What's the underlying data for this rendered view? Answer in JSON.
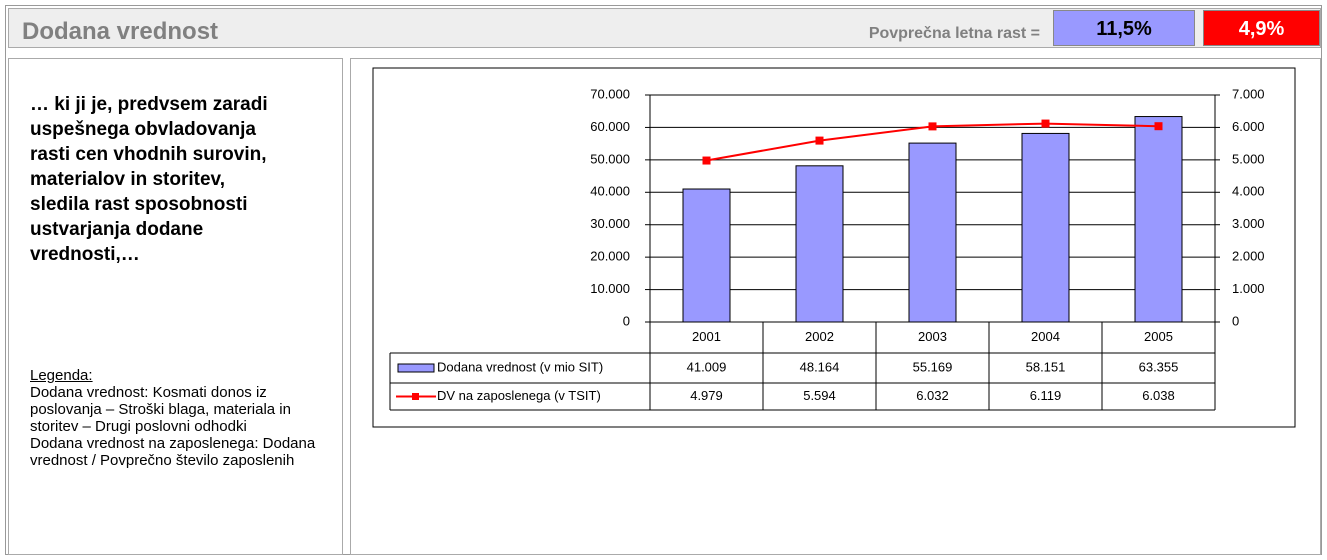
{
  "header": {
    "title": "Dodana vrednost",
    "growth_label": "Povprečna letna rast =",
    "growth_values": [
      "11,5%",
      "4,9%"
    ]
  },
  "left": {
    "text": "… ki ji je, predvsem zaradi uspešnega obvladovanja rasti cen vhodnih surovin, materialov in storitev, sledila rast sposobnosti ustvarjanja dodane vrednosti,…",
    "legend_title": "Legenda:",
    "legend_items": [
      "Dodana vrednost: Kosmati donos iz poslovanja – Stroški blaga, materiala in storitev – Drugi poslovni odhodki",
      "Dodana vrednost na zaposlenega: Dodana vrednost / Povprečno število zaposlenih"
    ]
  },
  "chart_data": {
    "type": "bar_line",
    "categories": [
      "2001",
      "2002",
      "2003",
      "2004",
      "2005"
    ],
    "series": [
      {
        "name": "Dodana vrednost (v mio SIT)",
        "type": "bar",
        "color": "#9999ff",
        "values": [
          41009,
          48164,
          55169,
          58151,
          63355
        ],
        "value_labels": [
          "41.009",
          "48.164",
          "55.169",
          "58.151",
          "63.355"
        ]
      },
      {
        "name": "DV na zaposlenega (v TSIT)",
        "type": "line",
        "axis": "y2",
        "color": "#ff0000",
        "values": [
          4979,
          5594,
          6032,
          6119,
          6038
        ],
        "value_labels": [
          "4.979",
          "5.594",
          "6.032",
          "6.119",
          "6.038"
        ]
      }
    ],
    "ylim": [
      0,
      70000
    ],
    "yticks": [
      0,
      {
        "value": 10000,
        "label": "10.000"
      },
      {
        "value": 20000,
        "label": "20.000"
      },
      {
        "value": 30000,
        "label": "30.000"
      },
      {
        "value": 40000,
        "label": "40.000"
      },
      {
        "value": 50000,
        "label": "50.000"
      },
      {
        "value": 60000,
        "label": "60.000"
      },
      {
        "value": 70000,
        "label": "70.000"
      }
    ],
    "y2lim": [
      0,
      7000
    ],
    "y2ticks": [
      0,
      {
        "value": 1000,
        "label": "1.000"
      },
      {
        "value": 2000,
        "label": "2.000"
      },
      {
        "value": 3000,
        "label": "3.000"
      },
      {
        "value": 4000,
        "label": "4.000"
      },
      {
        "value": 5000,
        "label": "5.000"
      },
      {
        "value": 6000,
        "label": "6.000"
      },
      {
        "value": 7000,
        "label": "7.000"
      }
    ],
    "grid": true
  }
}
